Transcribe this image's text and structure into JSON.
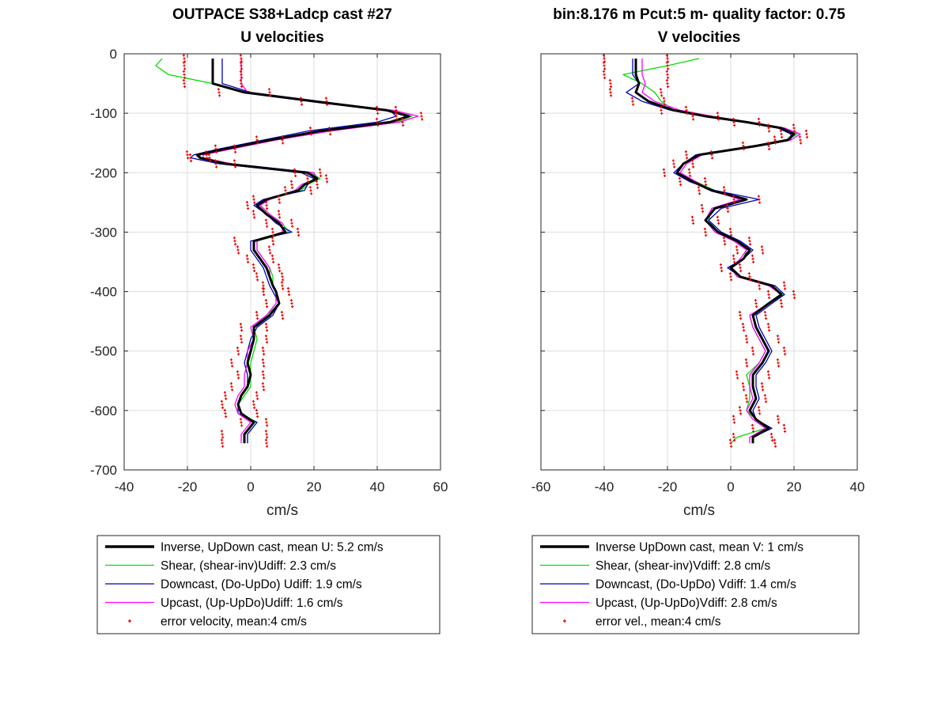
{
  "figure": {
    "left_title_line1": "OUTPACE S38+Ladcp cast #27",
    "left_title_line2": "U velocities",
    "right_title_line1": "bin:8.176 m  Pcut:5 m- quality factor:  0.75",
    "right_title_line2": "V velocities"
  },
  "colors": {
    "inverse": "#000000",
    "shear": "#00dd00",
    "downcast": "#0000bb",
    "upcast": "#ff00ff",
    "error": "#ee0000",
    "grid": "#dddddd"
  },
  "chart_data": [
    {
      "type": "line",
      "title": "OUTPACE S38+Ladcp cast #27\nU velocities",
      "xlabel": "cm/s",
      "ylabel": "",
      "xlim": [
        -40,
        60
      ],
      "ylim": [
        -700,
        0
      ],
      "xticks": [
        "-40",
        "-20",
        "0",
        "20",
        "40",
        "60"
      ],
      "yticks": [
        "0",
        "-100",
        "-200",
        "-300",
        "-400",
        "-500",
        "-600",
        "-700"
      ],
      "grid": true,
      "legend_position": "below",
      "depth": [
        -8,
        -20,
        -35,
        -50,
        -65,
        -80,
        -95,
        -105,
        -115,
        -130,
        -145,
        -160,
        -170,
        -175,
        -185,
        -200,
        -210,
        -220,
        -230,
        -245,
        -255,
        -270,
        -285,
        -300,
        -315,
        -330,
        -345,
        -360,
        -375,
        -390,
        -400,
        -420,
        -440,
        -460,
        -480,
        -500,
        -520,
        -540,
        -560,
        -575,
        -590,
        -605,
        -620,
        -640,
        -655
      ],
      "series": [
        {
          "name": "Inverse, UpDown cast, mean U:  5.2 cm/s",
          "style": "thick",
          "x": [
            -12,
            -12,
            -12,
            -12,
            -2,
            20,
            43,
            50,
            44,
            22,
            6,
            -8,
            -17,
            -16,
            -8,
            18,
            21,
            17,
            15,
            5,
            2,
            5,
            9,
            11,
            1,
            1,
            3,
            5,
            6,
            7,
            8,
            9,
            6,
            1,
            1,
            0,
            -1,
            0,
            -1,
            -3,
            -4,
            -3,
            1,
            -2,
            -2
          ]
        },
        {
          "name": "Shear, (shear-inv)Udiff:  2.3 cm/s",
          "style": "thin",
          "x": [
            -28,
            -30,
            -26,
            -12,
            -1,
            21,
            44,
            51,
            46,
            24,
            8,
            -7,
            -16,
            -16,
            -7,
            19,
            22,
            18,
            16,
            5,
            3,
            6,
            10,
            12,
            2,
            2,
            4,
            6,
            7,
            7,
            8,
            9,
            5,
            1,
            2,
            1,
            0,
            0,
            0,
            -2,
            -4,
            -3,
            2,
            -1,
            -1
          ]
        },
        {
          "name": "Downcast, (Do-UpDo) Udiff:  1.9 cm/s",
          "style": "thin",
          "x": [
            -9,
            -9,
            -9,
            -9,
            0,
            22,
            44,
            46,
            40,
            18,
            4,
            -10,
            -18,
            -19,
            -10,
            16,
            20,
            18,
            17,
            4,
            1,
            5,
            8,
            13,
            0,
            0,
            2,
            4,
            5,
            6,
            7,
            9,
            7,
            2,
            0,
            -1,
            -2,
            -1,
            -1,
            -3,
            -4,
            -4,
            2,
            -1,
            -1
          ]
        },
        {
          "name": "Upcast, (Up-UpDo)Udiff:  1.6 cm/s",
          "style": "thin",
          "x": [
            -3,
            -3,
            -3,
            -3,
            -1,
            21,
            45,
            53,
            47,
            25,
            8,
            -6,
            -15,
            -15,
            -6,
            20,
            21,
            16,
            14,
            6,
            3,
            6,
            10,
            10,
            2,
            2,
            4,
            6,
            6,
            7,
            8,
            8,
            5,
            0,
            1,
            -1,
            -1,
            -2,
            -2,
            -4,
            -5,
            -4,
            0,
            -3,
            -3
          ]
        },
        {
          "name": "error velocity, mean:4 cm/s",
          "style": "dots",
          "x": [
            -12,
            -12,
            -12,
            -12,
            -2,
            20,
            43,
            50,
            44,
            22,
            6,
            -8,
            -17,
            -16,
            -8,
            18,
            21,
            17,
            15,
            5,
            2,
            5,
            9,
            11,
            1,
            1,
            3,
            5,
            6,
            7,
            8,
            9,
            6,
            1,
            1,
            0,
            -1,
            0,
            -1,
            -3,
            -4,
            -3,
            1,
            -2,
            -2
          ],
          "error": [
            9,
            9,
            9,
            9,
            8,
            4,
            3,
            4,
            4,
            3,
            4,
            3,
            3,
            3,
            3,
            4,
            3,
            4,
            4,
            4,
            3,
            4,
            4,
            4,
            6,
            5,
            4,
            4,
            4,
            3,
            4,
            4,
            4,
            4,
            4,
            4,
            5,
            4,
            5,
            5,
            5,
            5,
            4,
            7,
            7
          ]
        }
      ]
    },
    {
      "type": "line",
      "title": "bin:8.176 m  Pcut:5 m- quality factor:  0.75\nV velocities",
      "xlabel": "cm/s",
      "ylabel": "",
      "xlim": [
        -60,
        40
      ],
      "ylim": [
        -700,
        0
      ],
      "xticks": [
        "-60",
        "-40",
        "-20",
        "0",
        "20",
        "40"
      ],
      "yticks": [],
      "grid": true,
      "legend_position": "below",
      "depth": [
        -8,
        -20,
        -35,
        -50,
        -65,
        -80,
        -95,
        -105,
        -115,
        -125,
        -135,
        -145,
        -155,
        -170,
        -185,
        -200,
        -215,
        -230,
        -245,
        -260,
        -280,
        -300,
        -315,
        -330,
        -345,
        -360,
        -375,
        -390,
        -405,
        -420,
        -440,
        -460,
        -480,
        -500,
        -520,
        -540,
        -560,
        -580,
        -600,
        -615,
        -630,
        -645,
        -655
      ],
      "series": [
        {
          "name": "Inverse UpDown cast, mean V:  1 cm/s",
          "style": "thick",
          "x": [
            -30,
            -30,
            -30,
            -29,
            -30,
            -26,
            -18,
            -8,
            5,
            16,
            20,
            18,
            8,
            -10,
            -15,
            -17,
            -12,
            -6,
            5,
            -5,
            -8,
            -4,
            2,
            6,
            4,
            0,
            3,
            13,
            16,
            12,
            7,
            8,
            10,
            12,
            10,
            7,
            7,
            8,
            6,
            8,
            12,
            7,
            7
          ]
        },
        {
          "name": "Shear, (shear-inv)Vdiff:  2.8 cm/s",
          "style": "thin",
          "x": [
            -10,
            -20,
            -34,
            -28,
            -24,
            -22,
            -18,
            -9,
            5,
            17,
            21,
            18,
            7,
            -9,
            -15,
            -17,
            -11,
            -5,
            4,
            -6,
            -7,
            -4,
            2,
            5,
            4,
            0,
            3,
            12,
            17,
            12,
            6,
            7,
            9,
            11,
            9,
            5,
            6,
            6,
            5,
            8,
            11,
            2,
            0
          ]
        },
        {
          "name": "Downcast, (Do-UpDo) Vdiff:  1.4 cm/s",
          "style": "thin",
          "x": [
            -31,
            -31,
            -31,
            -29,
            -33,
            -28,
            -19,
            -8,
            4,
            15,
            19,
            19,
            9,
            -11,
            -15,
            -18,
            -13,
            -5,
            9,
            -3,
            -7,
            -3,
            3,
            7,
            4,
            -1,
            3,
            14,
            17,
            13,
            8,
            9,
            11,
            13,
            11,
            8,
            8,
            9,
            7,
            8,
            13,
            7,
            7
          ]
        },
        {
          "name": "Upcast, (Up-UpDo)Vdiff:  2.8 cm/s",
          "style": "thin",
          "x": [
            -28,
            -28,
            -28,
            -27,
            -28,
            -24,
            -16,
            -6,
            6,
            17,
            22,
            19,
            9,
            -9,
            -14,
            -16,
            -11,
            -6,
            3,
            -6,
            -8,
            -5,
            1,
            5,
            3,
            0,
            2,
            12,
            16,
            12,
            6,
            7,
            9,
            11,
            9,
            6,
            6,
            7,
            5,
            7,
            11,
            6,
            6
          ]
        },
        {
          "name": "error vel., mean:4 cm/s",
          "style": "dots",
          "x": [
            -30,
            -30,
            -30,
            -29,
            -30,
            -26,
            -18,
            -8,
            5,
            16,
            20,
            18,
            8,
            -10,
            -15,
            -17,
            -12,
            -6,
            5,
            -5,
            -8,
            -4,
            2,
            6,
            4,
            0,
            3,
            13,
            16,
            12,
            7,
            8,
            10,
            12,
            10,
            7,
            7,
            8,
            6,
            8,
            12,
            7,
            7
          ],
          "error": [
            10,
            10,
            10,
            9,
            8,
            5,
            4,
            4,
            4,
            4,
            4,
            4,
            4,
            4,
            3,
            4,
            4,
            4,
            4,
            4,
            4,
            4,
            4,
            4,
            3,
            3,
            3,
            4,
            4,
            4,
            4,
            4,
            5,
            5,
            5,
            5,
            3,
            3,
            3,
            7,
            5,
            6,
            7
          ]
        }
      ]
    }
  ]
}
